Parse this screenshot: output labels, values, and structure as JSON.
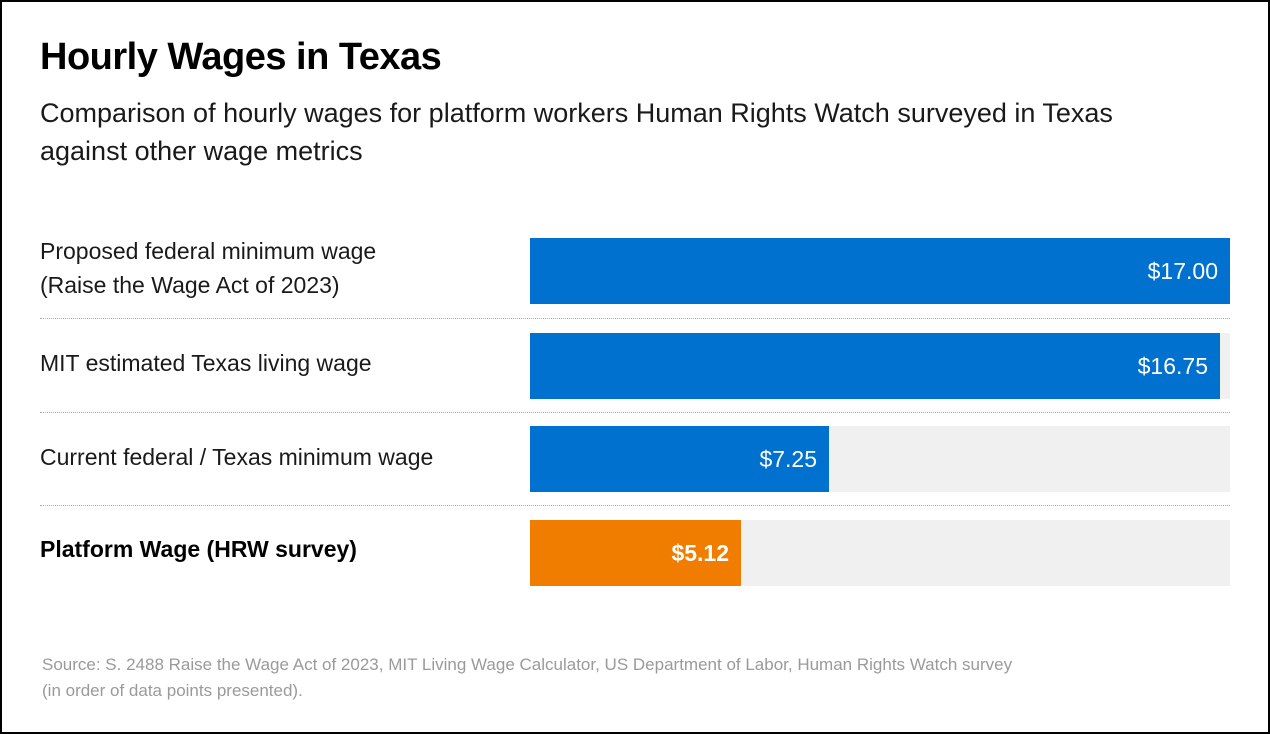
{
  "chart_data": {
    "type": "bar",
    "orientation": "horizontal",
    "title": "Hourly Wages in Texas",
    "subtitle": "Comparison of hourly wages for platform workers Human Rights Watch surveyed in Texas against other wage metrics",
    "categories": [
      "Proposed federal minimum wage (Raise the Wage Act of 2023)",
      "MIT estimated Texas living wage",
      "Current federal / Texas minimum wage",
      "Platform Wage (HRW survey)"
    ],
    "values": [
      17.0,
      16.75,
      7.25,
      5.12
    ],
    "value_labels": [
      "$17.00",
      "$16.75",
      "$7.25",
      "$5.12"
    ],
    "colors": [
      "#0071ce",
      "#0071ce",
      "#0071ce",
      "#f07c00"
    ],
    "xlim": [
      0,
      17
    ],
    "xlabel": "",
    "ylabel": "",
    "grid": false,
    "source": "Source: S. 2488 Raise the Wage Act of 2023, MIT Living Wage Calculator, US Department of Labor, Human Rights Watch survey (in order of data points presented)."
  },
  "rows": [
    {
      "label_lines": [
        "Proposed federal minimum wage",
        "(Raise the Wage Act of 2023)"
      ],
      "value": 17.0,
      "value_label": "$17.00",
      "color": "#0071ce",
      "bold": false
    },
    {
      "label_lines": [
        "MIT estimated Texas living wage"
      ],
      "value": 16.75,
      "value_label": "$16.75",
      "color": "#0071ce",
      "bold": false
    },
    {
      "label_lines": [
        "Current federal / Texas minimum wage"
      ],
      "value": 7.25,
      "value_label": "$7.25",
      "color": "#0071ce",
      "bold": false
    },
    {
      "label_lines": [
        "Platform Wage (HRW survey)"
      ],
      "value": 5.12,
      "value_label": "$5.12",
      "color": "#f07c00",
      "bold": true
    }
  ],
  "source_lines": [
    "Source: S. 2488 Raise the Wage Act of 2023, MIT Living Wage Calculator, US Department of Labor, Human Rights Watch survey",
    "(in order of data points presented)."
  ],
  "max_value": 17.0
}
